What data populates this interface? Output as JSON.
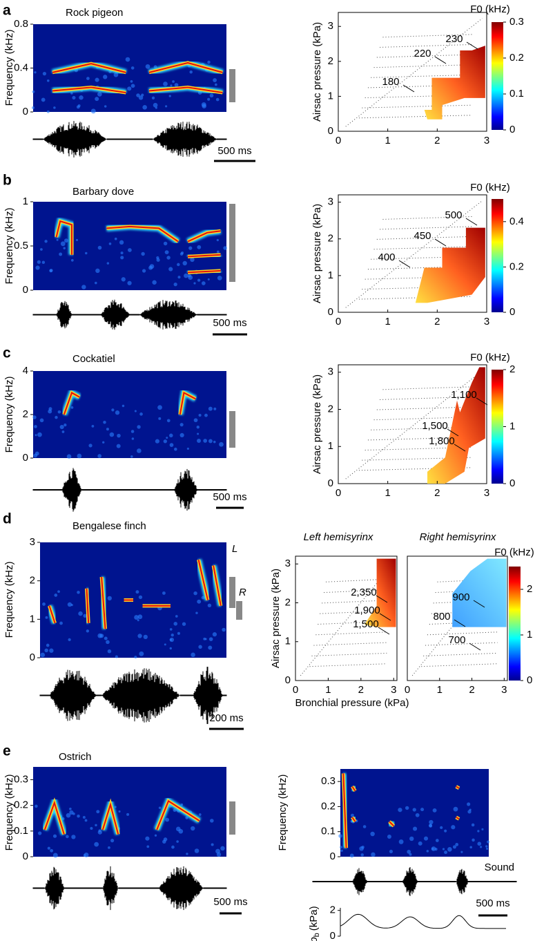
{
  "chart_data": [
    {
      "type": "spectrogram",
      "panel": "a",
      "title": "Rock pigeon",
      "ylabel": "Frequency (kHz)",
      "ylim": [
        0,
        0.8
      ],
      "yticks": [
        0,
        0.4,
        0.8
      ],
      "scale_bar": "500 ms"
    },
    {
      "type": "contour",
      "ylabel": "Airsac pressure (kPa)",
      "xlim": [
        0,
        3
      ],
      "xticks": [
        0,
        1,
        2,
        3
      ],
      "ylim": [
        0,
        3.4
      ],
      "yticks": [
        0,
        1,
        2,
        3
      ],
      "contour_labels": [
        "230",
        "220",
        "180"
      ],
      "colorbar": {
        "label": "F0 (kHz)",
        "lim": [
          0,
          0.3
        ],
        "ticks": [
          0,
          0.1,
          0.2,
          0.3
        ]
      }
    },
    {
      "type": "spectrogram",
      "panel": "b",
      "title": "Barbary dove",
      "ylabel": "Frequency (kHz)",
      "ylim": [
        0,
        1
      ],
      "yticks": [
        0,
        0.5,
        1
      ],
      "scale_bar": "500 ms"
    },
    {
      "type": "contour",
      "ylabel": "Airsac pressure (kPa)",
      "xlim": [
        0,
        3
      ],
      "xticks": [
        0,
        1,
        2,
        3
      ],
      "ylim": [
        0,
        3.2
      ],
      "yticks": [
        0,
        1,
        2,
        3
      ],
      "contour_labels": [
        "500",
        "450",
        "400"
      ],
      "colorbar": {
        "label": "F0 (kHz)",
        "lim": [
          0,
          0.5
        ],
        "ticks": [
          0,
          0.2,
          0.4
        ]
      }
    },
    {
      "type": "spectrogram",
      "panel": "c",
      "title": "Cockatiel",
      "ylabel": "Frequency (kHz)",
      "ylim": [
        0,
        4
      ],
      "yticks": [
        0,
        2,
        4
      ],
      "scale_bar": "500 ms"
    },
    {
      "type": "contour",
      "ylabel": "Airsac pressure (kPa)",
      "xlim": [
        0,
        3
      ],
      "xticks": [
        0,
        1,
        2,
        3
      ],
      "ylim": [
        0,
        3.2
      ],
      "yticks": [
        0,
        1,
        2,
        3
      ],
      "contour_labels": [
        "1,100",
        "1,500",
        "1,800"
      ],
      "colorbar": {
        "label": "F0 (kHz)",
        "lim": [
          0,
          2
        ],
        "ticks": [
          0,
          1,
          2
        ]
      }
    },
    {
      "type": "spectrogram",
      "panel": "d",
      "title": "Bengalese finch",
      "ylabel": "Frequency (kHz)",
      "ylim": [
        0,
        3
      ],
      "yticks": [
        0,
        1,
        2,
        3
      ],
      "scale_bar": "200 ms",
      "markers": [
        "L",
        "R"
      ]
    },
    {
      "type": "contour",
      "title": "Left hemisyrinx",
      "ylabel": "Airsac pressure (kPa)",
      "xlabel": "Bronchial pressure (kPa)",
      "xlim": [
        0,
        3.1
      ],
      "xticks": [
        0,
        1,
        2,
        3
      ],
      "ylim": [
        0,
        3.2
      ],
      "yticks": [
        0,
        1,
        2,
        3
      ],
      "contour_labels": [
        "2,350",
        "1,900",
        "1,500"
      ]
    },
    {
      "type": "contour",
      "title": "Right hemisyrinx",
      "xlim": [
        0,
        3.1
      ],
      "xticks": [
        0,
        1,
        2,
        3
      ],
      "ylim": [
        0,
        3.2
      ],
      "contour_labels": [
        "900",
        "800",
        "700"
      ],
      "colorbar": {
        "label": "F0 (kHz)",
        "lim": [
          0,
          2.5
        ],
        "ticks": [
          0,
          1,
          2
        ]
      }
    },
    {
      "type": "spectrogram",
      "panel": "e",
      "title": "Ostrich",
      "ylabel": "Frequency (kHz)",
      "ylim": [
        0,
        0.35
      ],
      "yticks": [
        0,
        0.1,
        0.2,
        0.3
      ],
      "scale_bar": "500 ms"
    },
    {
      "type": "spectrogram",
      "ylabel": "Frequency (kHz)",
      "ylim": [
        0,
        0.35
      ],
      "yticks": [
        0,
        0.1,
        0.2,
        0.3
      ],
      "scale_bar": "500 ms",
      "wave_label": "Sound",
      "pressure_axis": {
        "symbol": "p",
        "subscript": "b",
        "unit": "(kPa)",
        "ylim": [
          0,
          2.2
        ],
        "yticks": [
          0,
          2
        ]
      }
    }
  ]
}
